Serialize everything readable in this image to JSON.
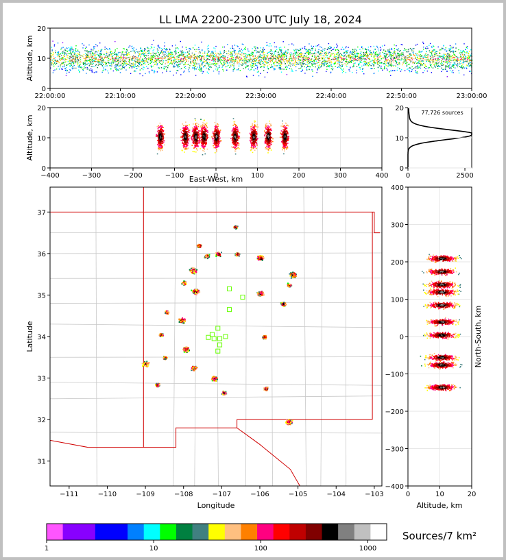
{
  "title": "LL LMA 2200-2300 UTC July 18, 2024",
  "colors": {
    "colorbar": [
      "#ff55ff",
      "#8800ff",
      "#8800ff",
      "#0000ff",
      "#0000ff",
      "#0080ff",
      "#00ffff",
      "#00ff00",
      "#008040",
      "#408080",
      "#ffff00",
      "#ffc080",
      "#ff8000",
      "#ff0080",
      "#ff0000",
      "#c00000",
      "#800000",
      "#000000",
      "#808080",
      "#c0c0c0",
      "#ffffff"
    ],
    "state_border": "#d00000",
    "county_lines": "#c8c8c8",
    "markers": "#66ff00"
  },
  "chart_data": [
    {
      "type": "heatmap",
      "name": "altitude-time",
      "ylabel": "Altitude, km",
      "ylim": [
        0,
        20
      ],
      "yticks": [
        0,
        10,
        20
      ],
      "xticks": [
        "22:00:00",
        "22:10:00",
        "22:20:00",
        "22:30:00",
        "22:40:00",
        "22:50:00",
        "23:00:00"
      ]
    },
    {
      "type": "heatmap",
      "name": "altitude-east-west",
      "xlabel": "East-West, km",
      "ylabel": "Altitude, km",
      "xlim": [
        -400,
        400
      ],
      "ylim": [
        0,
        20
      ],
      "xticks": [
        -400,
        -300,
        -200,
        -100,
        0,
        100,
        200,
        300,
        400
      ],
      "yticks": [
        0,
        10,
        20
      ],
      "clusters_x": [
        -135,
        -75,
        -50,
        -30,
        0,
        45,
        90,
        125,
        165
      ]
    },
    {
      "type": "line",
      "name": "altitude-histogram",
      "annotation": "77,726 sources",
      "xlim": [
        0,
        2800
      ],
      "ylim": [
        0,
        20
      ],
      "xticks": [
        0,
        2500
      ],
      "yticks": [
        0,
        10,
        20
      ],
      "peak_altitude": 11,
      "peak_count": 2800
    },
    {
      "type": "heatmap",
      "name": "plan-view",
      "xlabel": "Longitude",
      "ylabel": "Latitude",
      "xlim": [
        -111.5,
        -102.8
      ],
      "ylim": [
        30.4,
        37.6
      ],
      "xticks": [
        -111,
        -110,
        -109,
        -108,
        -107,
        -106,
        -105,
        -104,
        -103
      ],
      "yticks": [
        31,
        32,
        33,
        34,
        35,
        36,
        37
      ],
      "storm_cells": [
        {
          "lon": -105.15,
          "lat": 35.5
        },
        {
          "lon": -105.25,
          "lat": 35.25
        },
        {
          "lon": -106.0,
          "lat": 35.9
        },
        {
          "lon": -106.6,
          "lat": 36.0
        },
        {
          "lon": -106.65,
          "lat": 36.65
        },
        {
          "lon": -107.4,
          "lat": 35.95
        },
        {
          "lon": -107.1,
          "lat": 36.0
        },
        {
          "lon": -107.6,
          "lat": 36.2
        },
        {
          "lon": -107.75,
          "lat": 35.6
        },
        {
          "lon": -108.0,
          "lat": 35.3
        },
        {
          "lon": -107.7,
          "lat": 35.1
        },
        {
          "lon": -106.0,
          "lat": 35.05
        },
        {
          "lon": -105.4,
          "lat": 34.8
        },
        {
          "lon": -108.45,
          "lat": 34.6
        },
        {
          "lon": -108.05,
          "lat": 34.4
        },
        {
          "lon": -108.6,
          "lat": 34.05
        },
        {
          "lon": -107.95,
          "lat": 33.7
        },
        {
          "lon": -108.5,
          "lat": 33.5
        },
        {
          "lon": -109.0,
          "lat": 33.35
        },
        {
          "lon": -107.75,
          "lat": 33.25
        },
        {
          "lon": -107.2,
          "lat": 33.0
        },
        {
          "lon": -108.7,
          "lat": 32.85
        },
        {
          "lon": -106.95,
          "lat": 32.65
        },
        {
          "lon": -105.85,
          "lat": 32.75
        },
        {
          "lon": -105.9,
          "lat": 34.0
        },
        {
          "lon": -105.25,
          "lat": 31.95
        }
      ],
      "markers": [
        {
          "lon": -106.8,
          "lat": 35.15
        },
        {
          "lon": -106.45,
          "lat": 34.95
        },
        {
          "lon": -106.8,
          "lat": 34.65
        },
        {
          "lon": -107.1,
          "lat": 34.2
        },
        {
          "lon": -107.25,
          "lat": 34.05
        },
        {
          "lon": -107.35,
          "lat": 33.98
        },
        {
          "lon": -107.2,
          "lat": 33.95
        },
        {
          "lon": -107.05,
          "lat": 33.95
        },
        {
          "lon": -106.9,
          "lat": 34.0
        },
        {
          "lon": -107.05,
          "lat": 33.8
        },
        {
          "lon": -107.1,
          "lat": 33.65
        }
      ]
    },
    {
      "type": "heatmap",
      "name": "altitude-north-south",
      "xlabel": "Altitude, km",
      "ylabel": "North-South, km",
      "xlim": [
        0,
        20
      ],
      "ylim": [
        -400,
        400
      ],
      "xticks": [
        0,
        10,
        20
      ],
      "yticks": [
        -400,
        -300,
        -200,
        -100,
        0,
        100,
        200,
        300,
        400
      ],
      "clusters_y": [
        210,
        175,
        140,
        120,
        85,
        40,
        5,
        -55,
        -75,
        -135
      ]
    },
    {
      "type": "table",
      "name": "colorbar",
      "title": "Sources/7 km²",
      "scale": "log",
      "range": [
        1,
        1000
      ],
      "tick_labels": [
        "1",
        "10",
        "100",
        "1000"
      ],
      "tick_values": [
        1,
        10,
        100,
        1000
      ]
    }
  ]
}
